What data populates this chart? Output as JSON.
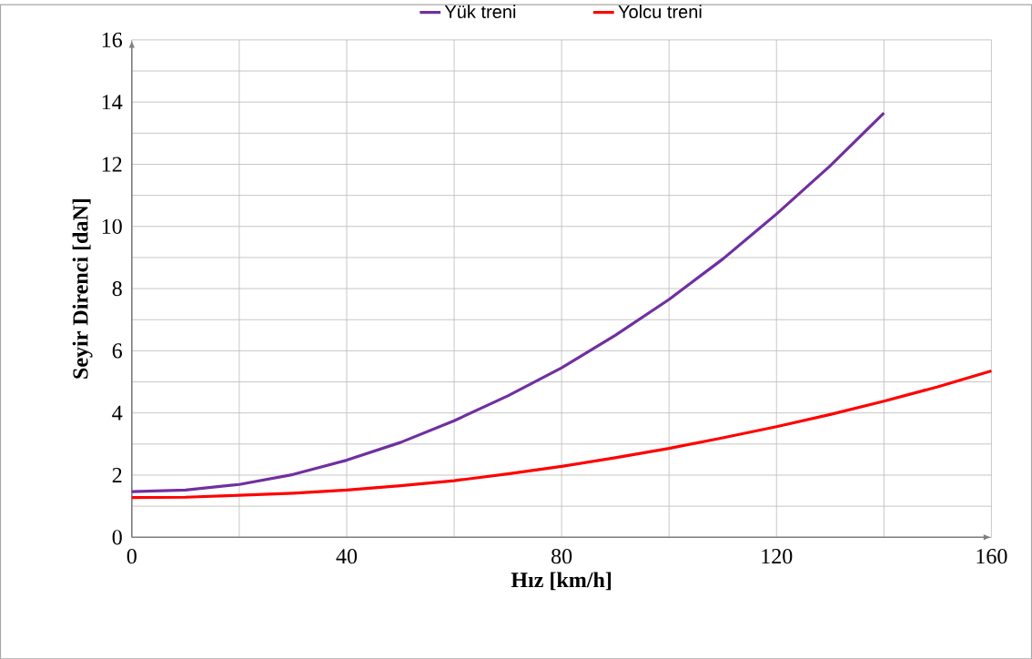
{
  "chart_data": {
    "type": "line",
    "xlabel": "Hız [km/h]",
    "ylabel": "Seyir Direnci [daN]",
    "legend": "top",
    "grid": true,
    "marker": "none",
    "line_style": "solid",
    "xlim": [
      0,
      160
    ],
    "ylim": [
      0,
      16
    ],
    "xticks": [
      0,
      {
        "value": 20,
        "label": null
      },
      40,
      {
        "value": 60,
        "label": null
      },
      80,
      {
        "value": 100,
        "label": null
      },
      120,
      {
        "value": 140,
        "label": null
      },
      160
    ],
    "yticks": [
      0,
      {
        "value": 1,
        "label": null
      },
      2,
      {
        "value": 3,
        "label": null
      },
      4,
      {
        "value": 5,
        "label": null
      },
      6,
      {
        "value": 7,
        "label": null
      },
      8,
      {
        "value": 9,
        "label": null
      },
      10,
      {
        "value": 11,
        "label": null
      },
      12,
      {
        "value": 13,
        "label": null
      },
      14,
      {
        "value": 15,
        "label": null
      },
      16
    ],
    "series": [
      {
        "name": "Yük treni",
        "color": "#7030a0",
        "x": [
          0,
          10,
          20,
          30,
          40,
          50,
          60,
          70,
          80,
          90,
          100,
          110,
          120,
          130,
          140
        ],
        "values": [
          1.47,
          1.52,
          1.7,
          2.02,
          2.48,
          3.05,
          3.75,
          4.55,
          5.45,
          6.5,
          7.65,
          8.95,
          10.4,
          11.95,
          13.65
        ]
      },
      {
        "name": "Yolcu treni",
        "color": "#ff0000",
        "x": [
          0,
          10,
          20,
          30,
          40,
          50,
          60,
          70,
          80,
          90,
          100,
          110,
          120,
          130,
          140,
          150,
          160
        ],
        "values": [
          1.28,
          1.29,
          1.35,
          1.42,
          1.52,
          1.66,
          1.82,
          2.04,
          2.28,
          2.56,
          2.86,
          3.2,
          3.56,
          3.95,
          4.38,
          4.84,
          5.35
        ]
      }
    ]
  }
}
